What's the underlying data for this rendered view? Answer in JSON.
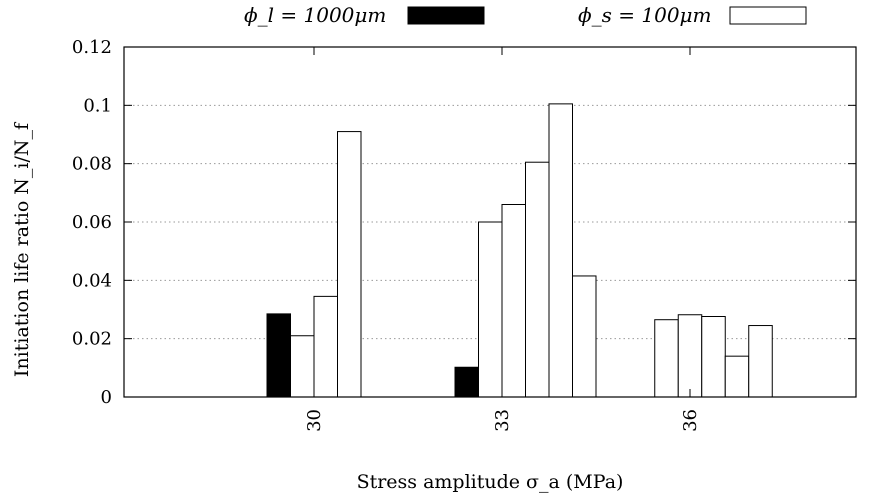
{
  "chart_data": {
    "type": "bar",
    "title": "",
    "xlabel": "Stress amplitude σ_a (MPa)",
    "ylabel": "Initiation life ratio N_i/N_f",
    "ylim": [
      0,
      0.12
    ],
    "yticks": [
      "0",
      "0.02",
      "0.04",
      "0.06",
      "0.08",
      "0.1",
      "0.12"
    ],
    "grid": "horizontal dotted",
    "legend_position": "top",
    "legend": [
      {
        "name": "ϕ_l = 1000μm",
        "fill": "#000000"
      },
      {
        "name": "ϕ_s = 100μm",
        "fill": "#ffffff"
      }
    ],
    "categories": [
      "30",
      "33",
      "36"
    ],
    "groups": [
      {
        "category": "30",
        "large": [
          0.0285
        ],
        "small": [
          0.021,
          0.0345,
          0.091
        ]
      },
      {
        "category": "33",
        "large": [
          0.0102
        ],
        "small": [
          0.06,
          0.066,
          0.0805,
          0.1005,
          0.0415
        ]
      },
      {
        "category": "36",
        "large": [],
        "small": [
          0.0265,
          0.0282,
          0.0276,
          0.014,
          0.0245
        ]
      }
    ]
  }
}
